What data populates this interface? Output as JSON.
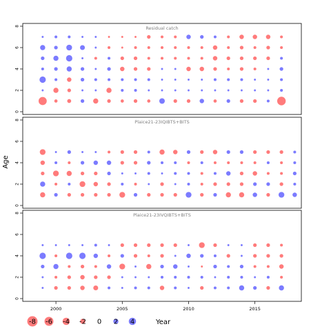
{
  "chart_data": {
    "type": "scatter",
    "subtype": "bubble",
    "ylabel": "Age",
    "xlabel": "Year",
    "x_ticks": [
      2000,
      2005,
      2010,
      2015
    ],
    "xlim": [
      1997.5,
      2018.5
    ],
    "ylim": [
      0,
      8
    ],
    "y_ticks": [
      0,
      2,
      4,
      6,
      8
    ],
    "colors": {
      "positive": "#6464ff",
      "negative": "#ff6464"
    },
    "legend": {
      "placement": "bottom",
      "values": [
        -8,
        -6,
        -4,
        -2,
        0,
        2,
        4
      ],
      "labels": [
        "-8",
        "-6",
        "-4",
        "-2",
        "0",
        "2",
        "4"
      ]
    },
    "panels": [
      {
        "title": "Residual catch",
        "years": [
          1999,
          2000,
          2001,
          2002,
          2003,
          2004,
          2005,
          2006,
          2007,
          2008,
          2009,
          2010,
          2011,
          2012,
          2013,
          2014,
          2015,
          2016,
          2017
        ],
        "ages": [
          1,
          2,
          3,
          4,
          5,
          6,
          7
        ],
        "residuals": [
          [
            -5.0,
            -0.8,
            -1.2,
            1.0,
            -2.0,
            -1.0,
            -0.8,
            -1.0,
            -0.8,
            2.3,
            -1.0,
            -1.0,
            1.5,
            -0.8,
            1.0,
            -1.0,
            -1.0,
            0.6,
            -5.5
          ],
          [
            0.3,
            -2.0,
            -1.0,
            0.3,
            0.3,
            -2.0,
            0.6,
            0.6,
            0.3,
            0.3,
            0.3,
            0.3,
            0.3,
            0.3,
            0.3,
            0.3,
            0.3,
            0.3,
            0.6
          ],
          [
            3.0,
            0.6,
            -1.5,
            1.0,
            0.6,
            0.6,
            0.6,
            0.6,
            0.6,
            0.3,
            0.3,
            0.3,
            0.3,
            0.6,
            0.6,
            0.6,
            0.3,
            0.3,
            0.6
          ],
          [
            0.6,
            1.0,
            2.0,
            1.0,
            0.3,
            1.0,
            -1.5,
            -1.0,
            -1.0,
            0.3,
            0.3,
            -1.5,
            -1.5,
            -1.0,
            -0.6,
            -1.0,
            -0.6,
            0.3,
            1.0
          ],
          [
            1.0,
            2.0,
            3.0,
            0.3,
            -0.6,
            0.6,
            -1.0,
            -1.0,
            -0.6,
            -0.6,
            -0.6,
            -0.6,
            -0.6,
            -1.5,
            -1.0,
            -1.0,
            -1.0,
            -1.0,
            0.6
          ],
          [
            2.0,
            1.0,
            2.5,
            1.8,
            0.3,
            -0.6,
            -0.3,
            -0.6,
            -0.6,
            -0.6,
            -0.6,
            -0.6,
            -0.6,
            -1.5,
            -0.6,
            -1.0,
            -0.6,
            -1.0,
            -0.6
          ],
          [
            0.3,
            0.6,
            0.6,
            0.3,
            0.3,
            -0.3,
            -0.3,
            -0.3,
            -1.0,
            -0.6,
            -0.6,
            1.5,
            1.0,
            0.6,
            -0.6,
            -1.5,
            -1.5,
            -1.5,
            -0.6
          ]
        ]
      },
      {
        "title": "Plaice21-23IQIBTS+BITS",
        "years": [
          1999,
          2000,
          2001,
          2002,
          2003,
          2004,
          2005,
          2006,
          2007,
          2008,
          2009,
          2010,
          2011,
          2012,
          2013,
          2014,
          2015,
          2016,
          2017,
          2018
        ],
        "ages": [
          1,
          2,
          3,
          4,
          5
        ],
        "residuals": [
          [
            -2.0,
            1.0,
            -1.0,
            -1.0,
            -1.0,
            -1.0,
            -2.5,
            1.0,
            -1.0,
            -1.0,
            -1.0,
            2.5,
            -1.0,
            1.0,
            -2.0,
            -2.0,
            1.5,
            -1.0,
            2.5,
            1.5
          ],
          [
            2.0,
            -0.6,
            0.6,
            -2.5,
            -1.5,
            -1.0,
            0.6,
            -0.6,
            0.3,
            -1.0,
            0.3,
            0.6,
            -0.6,
            -1.0,
            -1.0,
            -1.0,
            1.0,
            1.0,
            -1.0,
            0.6
          ],
          [
            -1.0,
            -2.5,
            -2.0,
            -1.0,
            -1.0,
            1.0,
            0.3,
            0.3,
            0.6,
            0.3,
            0.6,
            0.6,
            -0.6,
            0.6,
            1.5,
            -1.0,
            -1.5,
            -0.6,
            -0.6,
            1.0
          ],
          [
            -1.5,
            0.6,
            -0.6,
            1.0,
            1.5,
            1.5,
            -1.0,
            -1.0,
            1.0,
            0.6,
            0.6,
            -0.6,
            0.6,
            -0.6,
            -0.6,
            -0.6,
            -0.6,
            0.6,
            -0.6,
            0.6
          ],
          [
            -2.5,
            0.3,
            1.0,
            0.3,
            0.3,
            -0.6,
            -1.0,
            -1.0,
            0.6,
            -2.0,
            -1.5,
            1.0,
            -1.0,
            -1.5,
            1.0,
            1.0,
            -1.0,
            -1.0,
            -1.0,
            0.6
          ]
        ]
      },
      {
        "title": "Plaice21-23IVQIBTS+BITS",
        "years": [
          1999,
          2000,
          2001,
          2002,
          2003,
          2004,
          2005,
          2006,
          2007,
          2008,
          2009,
          2010,
          2011,
          2012,
          2013,
          2014,
          2015,
          2016,
          2017
        ],
        "ages": [
          1,
          2,
          3,
          4,
          5
        ],
        "residuals": [
          [
            0.3,
            -1.0,
            -1.0,
            -1.5,
            -1.8,
            0.6,
            0.3,
            0.6,
            0.6,
            -1.5,
            0.6,
            0.3,
            -1.0,
            0.6,
            0.6,
            2.0,
            1.0,
            -1.0,
            2.0
          ],
          [
            0.3,
            -0.6,
            -1.0,
            -1.5,
            -1.0,
            -1.0,
            0.3,
            0.3,
            0.3,
            0.6,
            0.6,
            0.6,
            0.6,
            0.3,
            0.6,
            0.6,
            0.3,
            0.6,
            -0.6
          ],
          [
            1.0,
            2.0,
            -0.6,
            -1.0,
            -0.6,
            1.5,
            -2.5,
            0.3,
            -2.0,
            1.0,
            1.5,
            0.3,
            -0.3,
            1.0,
            0.6,
            1.0,
            -0.6,
            -0.6,
            -1.5
          ],
          [
            3.0,
            -0.6,
            3.0,
            3.0,
            1.5,
            -0.6,
            1.0,
            -1.0,
            -0.6,
            -1.0,
            0.3,
            1.5,
            1.0,
            0.6,
            -1.0,
            0.3,
            -1.0,
            -1.0,
            -1.0
          ],
          [
            0.3,
            0.3,
            0.3,
            0.3,
            0.6,
            0.3,
            -1.0,
            -1.0,
            -1.0,
            -1.0,
            -1.0,
            0.3,
            -2.5,
            -1.0,
            0.3,
            0.3,
            -1.0,
            -1.0,
            -0.6
          ]
        ]
      }
    ]
  }
}
